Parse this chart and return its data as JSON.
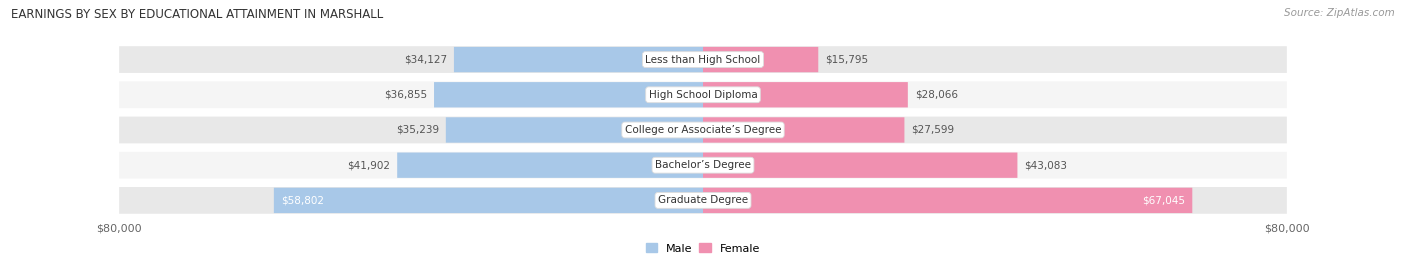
{
  "title": "EARNINGS BY SEX BY EDUCATIONAL ATTAINMENT IN MARSHALL",
  "source": "Source: ZipAtlas.com",
  "categories": [
    "Less than High School",
    "High School Diploma",
    "College or Associate’s Degree",
    "Bachelor’s Degree",
    "Graduate Degree"
  ],
  "male_values": [
    34127,
    36855,
    35239,
    41902,
    58802
  ],
  "female_values": [
    15795,
    28066,
    27599,
    43083,
    67045
  ],
  "male_color": "#a8c8e8",
  "female_color": "#f090b0",
  "label_color_inside": "#ffffff",
  "label_color_outside": "#555555",
  "max_value": 80000,
  "bar_height": 0.72,
  "row_bg_color": "#e8e8e8",
  "row_bg_color_alt": "#f5f5f5",
  "row_gap_color": "#ffffff"
}
